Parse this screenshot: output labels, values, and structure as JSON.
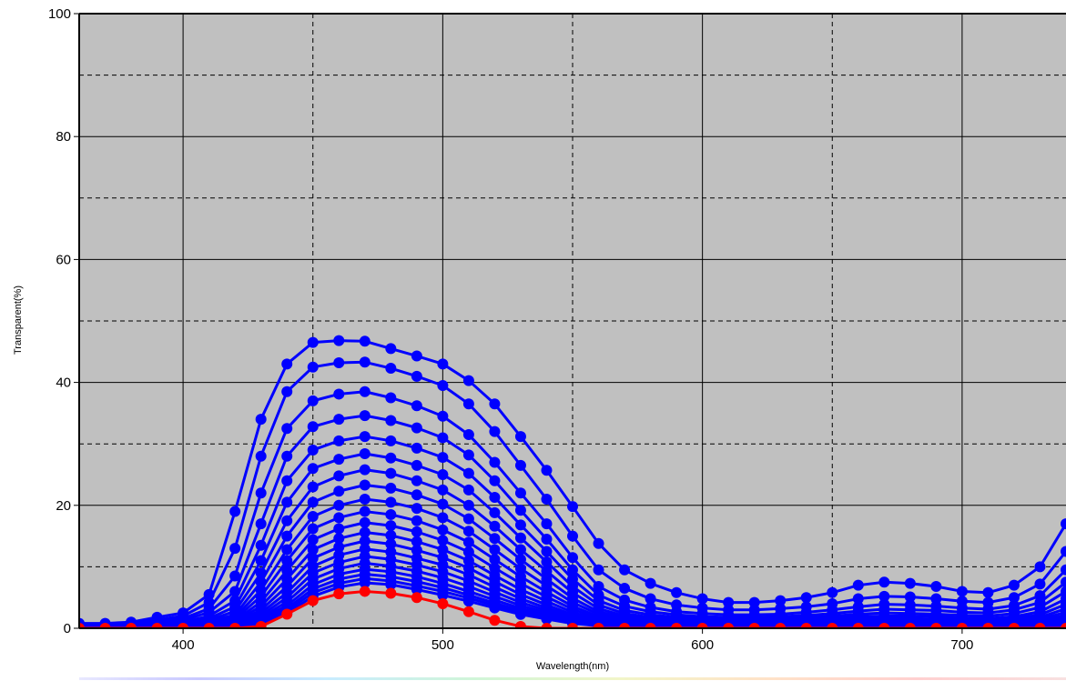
{
  "chart_data": {
    "type": "line",
    "xlabel": "Wavelength(nm)",
    "ylabel": "Transparent(%)",
    "xlim": [
      360,
      740
    ],
    "ylim": [
      0,
      100
    ],
    "x_ticks": [
      400,
      500,
      600,
      700
    ],
    "y_ticks": [
      0,
      20,
      40,
      60,
      80,
      100
    ],
    "grid": true,
    "background_color": "#c0c0c0",
    "x": [
      360,
      370,
      380,
      390,
      400,
      410,
      420,
      430,
      440,
      450,
      460,
      470,
      480,
      490,
      500,
      510,
      520,
      530,
      540,
      550,
      560,
      570,
      580,
      590,
      600,
      610,
      620,
      630,
      640,
      650,
      660,
      670,
      680,
      690,
      700,
      710,
      720,
      730,
      740
    ],
    "series": [
      {
        "color": "#0000ff",
        "values": [
          0.8,
          0.8,
          1.0,
          1.8,
          2.5,
          5.5,
          19.0,
          34.0,
          43.0,
          46.5,
          46.8,
          46.7,
          45.5,
          44.3,
          43.0,
          40.3,
          36.5,
          31.2,
          25.7,
          19.8,
          13.8,
          9.5,
          7.3,
          5.8,
          4.8,
          4.2,
          4.2,
          4.5,
          5.0,
          5.8,
          7.0,
          7.5,
          7.3,
          6.8,
          6.0,
          5.8,
          7.0,
          10.0,
          17.0
        ]
      },
      {
        "color": "#0000ff",
        "values": [
          0.6,
          0.6,
          0.8,
          1.4,
          2.0,
          4.2,
          13.0,
          28.0,
          38.5,
          42.5,
          43.2,
          43.3,
          42.3,
          41.0,
          39.5,
          36.5,
          32.0,
          26.5,
          21.0,
          15.0,
          9.5,
          6.5,
          4.8,
          3.8,
          3.3,
          3.0,
          3.0,
          3.2,
          3.5,
          4.0,
          4.8,
          5.2,
          5.1,
          4.8,
          4.4,
          4.2,
          5.0,
          7.2,
          12.5
        ]
      },
      {
        "color": "#0000ff",
        "values": [
          0.5,
          0.5,
          0.6,
          1.1,
          1.6,
          3.2,
          8.5,
          22.0,
          32.5,
          37.0,
          38.1,
          38.5,
          37.5,
          36.2,
          34.5,
          31.5,
          27.0,
          22.0,
          17.0,
          11.5,
          6.8,
          4.6,
          3.4,
          2.7,
          2.4,
          2.2,
          2.2,
          2.3,
          2.6,
          3.0,
          3.5,
          3.9,
          3.8,
          3.6,
          3.3,
          3.1,
          3.7,
          5.3,
          9.5
        ]
      },
      {
        "color": "#0000ff",
        "values": [
          0.4,
          0.4,
          0.5,
          0.9,
          1.3,
          2.6,
          6.0,
          17.0,
          28.0,
          32.8,
          34.0,
          34.6,
          33.8,
          32.6,
          31.0,
          28.2,
          24.0,
          19.2,
          14.5,
          9.5,
          5.4,
          3.6,
          2.7,
          2.2,
          1.9,
          1.8,
          1.8,
          1.9,
          2.1,
          2.4,
          2.8,
          3.1,
          3.0,
          2.9,
          2.6,
          2.5,
          3.0,
          4.2,
          7.5
        ]
      },
      {
        "color": "#0000ff",
        "values": [
          0.35,
          0.35,
          0.4,
          0.7,
          1.0,
          2.0,
          4.5,
          13.5,
          24.0,
          29.0,
          30.5,
          31.2,
          30.5,
          29.3,
          27.8,
          25.2,
          21.3,
          16.8,
          12.5,
          8.0,
          4.5,
          2.9,
          2.2,
          1.8,
          1.6,
          1.5,
          1.5,
          1.6,
          1.7,
          2.0,
          2.3,
          2.5,
          2.4,
          2.3,
          2.1,
          2.0,
          2.4,
          3.4,
          6.0
        ]
      },
      {
        "color": "#0000ff",
        "values": [
          0.3,
          0.3,
          0.35,
          0.6,
          0.8,
          1.6,
          3.5,
          11.0,
          20.5,
          26.0,
          27.5,
          28.4,
          27.7,
          26.5,
          25.0,
          22.5,
          18.8,
          14.7,
          10.8,
          6.8,
          3.8,
          2.4,
          1.8,
          1.5,
          1.3,
          1.2,
          1.2,
          1.3,
          1.4,
          1.6,
          1.9,
          2.0,
          2.0,
          1.9,
          1.7,
          1.6,
          1.9,
          2.7,
          4.8
        ]
      },
      {
        "color": "#0000ff",
        "values": [
          0.25,
          0.25,
          0.3,
          0.5,
          0.7,
          1.3,
          2.8,
          9.0,
          17.5,
          23.0,
          24.8,
          25.8,
          25.2,
          24.0,
          22.5,
          20.0,
          16.6,
          12.8,
          9.3,
          5.8,
          3.2,
          2.0,
          1.5,
          1.2,
          1.1,
          1.0,
          1.0,
          1.1,
          1.2,
          1.3,
          1.5,
          1.7,
          1.6,
          1.5,
          1.4,
          1.3,
          1.6,
          2.2,
          3.9
        ]
      },
      {
        "color": "#0000ff",
        "values": [
          0.2,
          0.2,
          0.25,
          0.4,
          0.6,
          1.1,
          2.2,
          7.5,
          15.0,
          20.5,
          22.3,
          23.3,
          22.8,
          21.7,
          20.2,
          17.8,
          14.6,
          11.2,
          8.0,
          4.9,
          2.7,
          1.7,
          1.3,
          1.0,
          0.9,
          0.85,
          0.85,
          0.9,
          1.0,
          1.1,
          1.3,
          1.4,
          1.35,
          1.3,
          1.2,
          1.1,
          1.3,
          1.8,
          3.2
        ]
      },
      {
        "color": "#0000ff",
        "values": [
          0.18,
          0.18,
          0.2,
          0.35,
          0.5,
          0.9,
          1.8,
          6.2,
          12.8,
          18.2,
          20.0,
          21.0,
          20.5,
          19.5,
          18.0,
          15.8,
          12.8,
          9.7,
          6.9,
          4.2,
          2.3,
          1.4,
          1.1,
          0.85,
          0.75,
          0.7,
          0.7,
          0.75,
          0.8,
          0.9,
          1.05,
          1.15,
          1.1,
          1.05,
          0.95,
          0.9,
          1.1,
          1.5,
          2.6
        ]
      },
      {
        "color": "#0000ff",
        "values": [
          0.15,
          0.15,
          0.18,
          0.3,
          0.4,
          0.75,
          1.5,
          5.2,
          11.0,
          16.2,
          18.0,
          19.0,
          18.5,
          17.5,
          16.0,
          14.0,
          11.2,
          8.4,
          5.9,
          3.6,
          1.9,
          1.2,
          0.9,
          0.7,
          0.62,
          0.58,
          0.58,
          0.62,
          0.68,
          0.75,
          0.88,
          0.95,
          0.92,
          0.88,
          0.8,
          0.75,
          0.9,
          1.25,
          2.1
        ]
      },
      {
        "color": "#0000ff",
        "values": [
          0.12,
          0.12,
          0.15,
          0.25,
          0.35,
          0.6,
          1.25,
          4.3,
          9.4,
          14.4,
          16.2,
          17.2,
          16.7,
          15.7,
          14.3,
          12.4,
          9.8,
          7.3,
          5.1,
          3.1,
          1.6,
          1.0,
          0.75,
          0.6,
          0.52,
          0.48,
          0.48,
          0.52,
          0.56,
          0.62,
          0.72,
          0.78,
          0.76,
          0.72,
          0.66,
          0.62,
          0.74,
          1.02,
          1.75
        ]
      },
      {
        "color": "#0000ff",
        "values": [
          0.1,
          0.1,
          0.12,
          0.2,
          0.3,
          0.5,
          1.05,
          3.6,
          8.0,
          12.8,
          14.6,
          15.6,
          15.1,
          14.1,
          12.8,
          11.0,
          8.6,
          6.3,
          4.4,
          2.6,
          1.35,
          0.85,
          0.63,
          0.5,
          0.44,
          0.4,
          0.4,
          0.44,
          0.47,
          0.52,
          0.6,
          0.65,
          0.63,
          0.6,
          0.55,
          0.52,
          0.62,
          0.85,
          1.45
        ]
      },
      {
        "color": "#0000ff",
        "values": [
          0.08,
          0.08,
          0.1,
          0.17,
          0.25,
          0.42,
          0.9,
          3.0,
          6.8,
          11.4,
          13.2,
          14.2,
          13.7,
          12.7,
          11.5,
          9.8,
          7.6,
          5.5,
          3.8,
          2.2,
          1.15,
          0.72,
          0.53,
          0.42,
          0.37,
          0.34,
          0.34,
          0.37,
          0.4,
          0.44,
          0.5,
          0.55,
          0.53,
          0.5,
          0.46,
          0.44,
          0.52,
          0.71,
          1.2
        ]
      },
      {
        "color": "#0000ff",
        "values": [
          0.07,
          0.07,
          0.08,
          0.14,
          0.2,
          0.35,
          0.75,
          2.5,
          5.8,
          10.1,
          11.9,
          12.9,
          12.4,
          11.4,
          10.3,
          8.7,
          6.7,
          4.8,
          3.3,
          1.9,
          0.98,
          0.61,
          0.45,
          0.36,
          0.31,
          0.29,
          0.29,
          0.31,
          0.34,
          0.37,
          0.42,
          0.46,
          0.45,
          0.42,
          0.39,
          0.37,
          0.44,
          0.6,
          1.0
        ]
      },
      {
        "color": "#0000ff",
        "values": [
          0.06,
          0.06,
          0.07,
          0.12,
          0.17,
          0.3,
          0.62,
          2.1,
          5.0,
          9.0,
          10.7,
          11.7,
          11.2,
          10.3,
          9.2,
          7.7,
          5.9,
          4.2,
          2.9,
          1.65,
          0.84,
          0.52,
          0.38,
          0.3,
          0.26,
          0.24,
          0.24,
          0.26,
          0.29,
          0.31,
          0.36,
          0.39,
          0.38,
          0.36,
          0.33,
          0.31,
          0.37,
          0.5,
          0.85
        ]
      },
      {
        "color": "#0000ff",
        "values": [
          0.05,
          0.05,
          0.06,
          0.1,
          0.14,
          0.25,
          0.52,
          1.75,
          4.3,
          8.0,
          9.7,
          10.6,
          10.1,
          9.3,
          8.2,
          6.8,
          5.2,
          3.7,
          2.5,
          1.42,
          0.72,
          0.44,
          0.32,
          0.26,
          0.22,
          0.2,
          0.2,
          0.22,
          0.24,
          0.26,
          0.3,
          0.33,
          0.32,
          0.3,
          0.28,
          0.26,
          0.31,
          0.42,
          0.72
        ]
      },
      {
        "color": "#0000ff",
        "values": [
          0.04,
          0.04,
          0.05,
          0.08,
          0.12,
          0.2,
          0.43,
          1.45,
          3.7,
          7.1,
          8.8,
          9.6,
          9.2,
          8.4,
          7.3,
          6.0,
          4.6,
          3.25,
          2.2,
          1.22,
          0.62,
          0.38,
          0.27,
          0.22,
          0.19,
          0.17,
          0.17,
          0.19,
          0.2,
          0.22,
          0.26,
          0.28,
          0.27,
          0.26,
          0.24,
          0.22,
          0.26,
          0.36,
          0.6
        ]
      },
      {
        "color": "#0000ff",
        "values": [
          0.03,
          0.03,
          0.04,
          0.07,
          0.1,
          0.17,
          0.36,
          1.2,
          3.2,
          6.4,
          8.0,
          8.8,
          8.4,
          7.6,
          6.6,
          5.4,
          4.1,
          2.85,
          1.9,
          1.05,
          0.53,
          0.32,
          0.23,
          0.18,
          0.16,
          0.14,
          0.14,
          0.16,
          0.17,
          0.19,
          0.22,
          0.24,
          0.23,
          0.22,
          0.2,
          0.19,
          0.22,
          0.3,
          0.5
        ]
      },
      {
        "color": "#0000ff",
        "values": [
          0.02,
          0.02,
          0.03,
          0.06,
          0.08,
          0.14,
          0.3,
          1.0,
          2.8,
          5.8,
          7.3,
          8.1,
          7.7,
          6.9,
          6.0,
          4.9,
          3.7,
          2.55,
          1.7,
          0.9,
          0.45,
          0.27,
          0.2,
          0.15,
          0.13,
          0.12,
          0.12,
          0.13,
          0.14,
          0.16,
          0.18,
          0.2,
          0.19,
          0.18,
          0.17,
          0.16,
          0.19,
          0.25,
          0.42
        ]
      },
      {
        "color": "#0000ff",
        "values": [
          0.02,
          0.02,
          0.02,
          0.05,
          0.07,
          0.12,
          0.25,
          0.8,
          2.4,
          5.2,
          6.7,
          7.4,
          7.1,
          6.3,
          5.4,
          4.4,
          3.3,
          2.25,
          1.5,
          0.78,
          0.39,
          0.23,
          0.17,
          0.13,
          0.11,
          0.1,
          0.1,
          0.11,
          0.12,
          0.13,
          0.15,
          0.17,
          0.16,
          0.15,
          0.14,
          0.13,
          0.16,
          0.21,
          0.35
        ]
      },
      {
        "color": "#ff0000",
        "values": [
          0.0,
          0.0,
          0.0,
          0.0,
          0.0,
          0.0,
          0.0,
          0.3,
          2.3,
          4.5,
          5.6,
          6.0,
          5.7,
          5.0,
          4.0,
          2.7,
          1.3,
          0.3,
          0.0,
          0.0,
          0.0,
          0.0,
          0.0,
          0.0,
          0.0,
          0.0,
          0.0,
          0.0,
          0.0,
          0.0,
          0.0,
          0.0,
          0.0,
          0.0,
          0.0,
          0.0,
          0.0,
          0.0,
          0.0
        ]
      }
    ]
  }
}
